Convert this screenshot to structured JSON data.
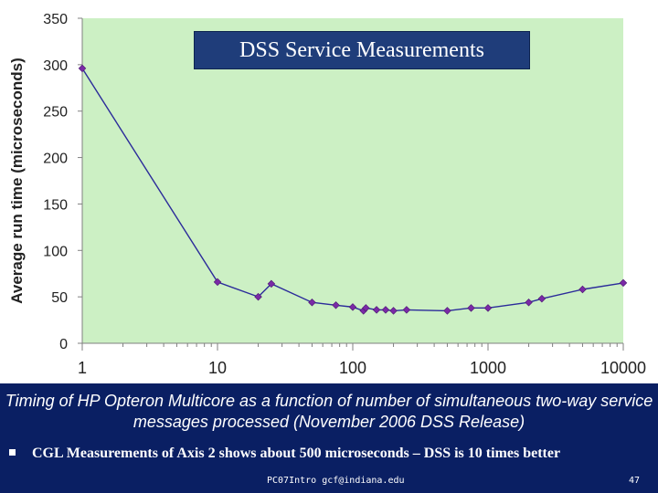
{
  "colors": {
    "plot_bg": "#ccf0c4",
    "line": "#2b2b9a",
    "marker": "#7a2aa6",
    "footer_bg": "#0a1f63",
    "title_bg": "#1f3d7a"
  },
  "chart_data": {
    "type": "line",
    "title": "DSS Service Measurements",
    "xlabel": "",
    "ylabel": "Average run time (microseconds)",
    "xscale": "log",
    "xlim": [
      1,
      10000
    ],
    "ylim": [
      0,
      350
    ],
    "x_ticks": [
      1,
      10,
      100,
      1000,
      10000
    ],
    "y_ticks": [
      0,
      50,
      100,
      150,
      200,
      250,
      300,
      350
    ],
    "x_tick_labels": [
      "1",
      "10",
      "100",
      "1000",
      "10000"
    ],
    "y_tick_labels": [
      "0",
      "50",
      "100",
      "150",
      "200",
      "250",
      "300",
      "350"
    ],
    "series": [
      {
        "name": "DSS",
        "x": [
          1,
          10,
          20,
          25,
          50,
          75,
          100,
          120,
          125,
          150,
          175,
          200,
          250,
          500,
          750,
          1000,
          2000,
          2500,
          5000,
          10000
        ],
        "values": [
          296,
          66,
          50,
          64,
          44,
          41,
          39,
          35,
          38,
          36,
          36,
          35,
          36,
          35,
          38,
          38,
          44,
          48,
          58,
          65
        ]
      }
    ]
  },
  "caption": "Timing of HP Opteron Multicore as a function of number of simultaneous two-way service messages processed (November 2006 DSS Release)",
  "bullet": "CGL Measurements of Axis 2 shows about 500 microseconds – DSS is 10 times better",
  "footer": {
    "center": "PC07Intro gcf@indiana.edu",
    "page": "47"
  }
}
